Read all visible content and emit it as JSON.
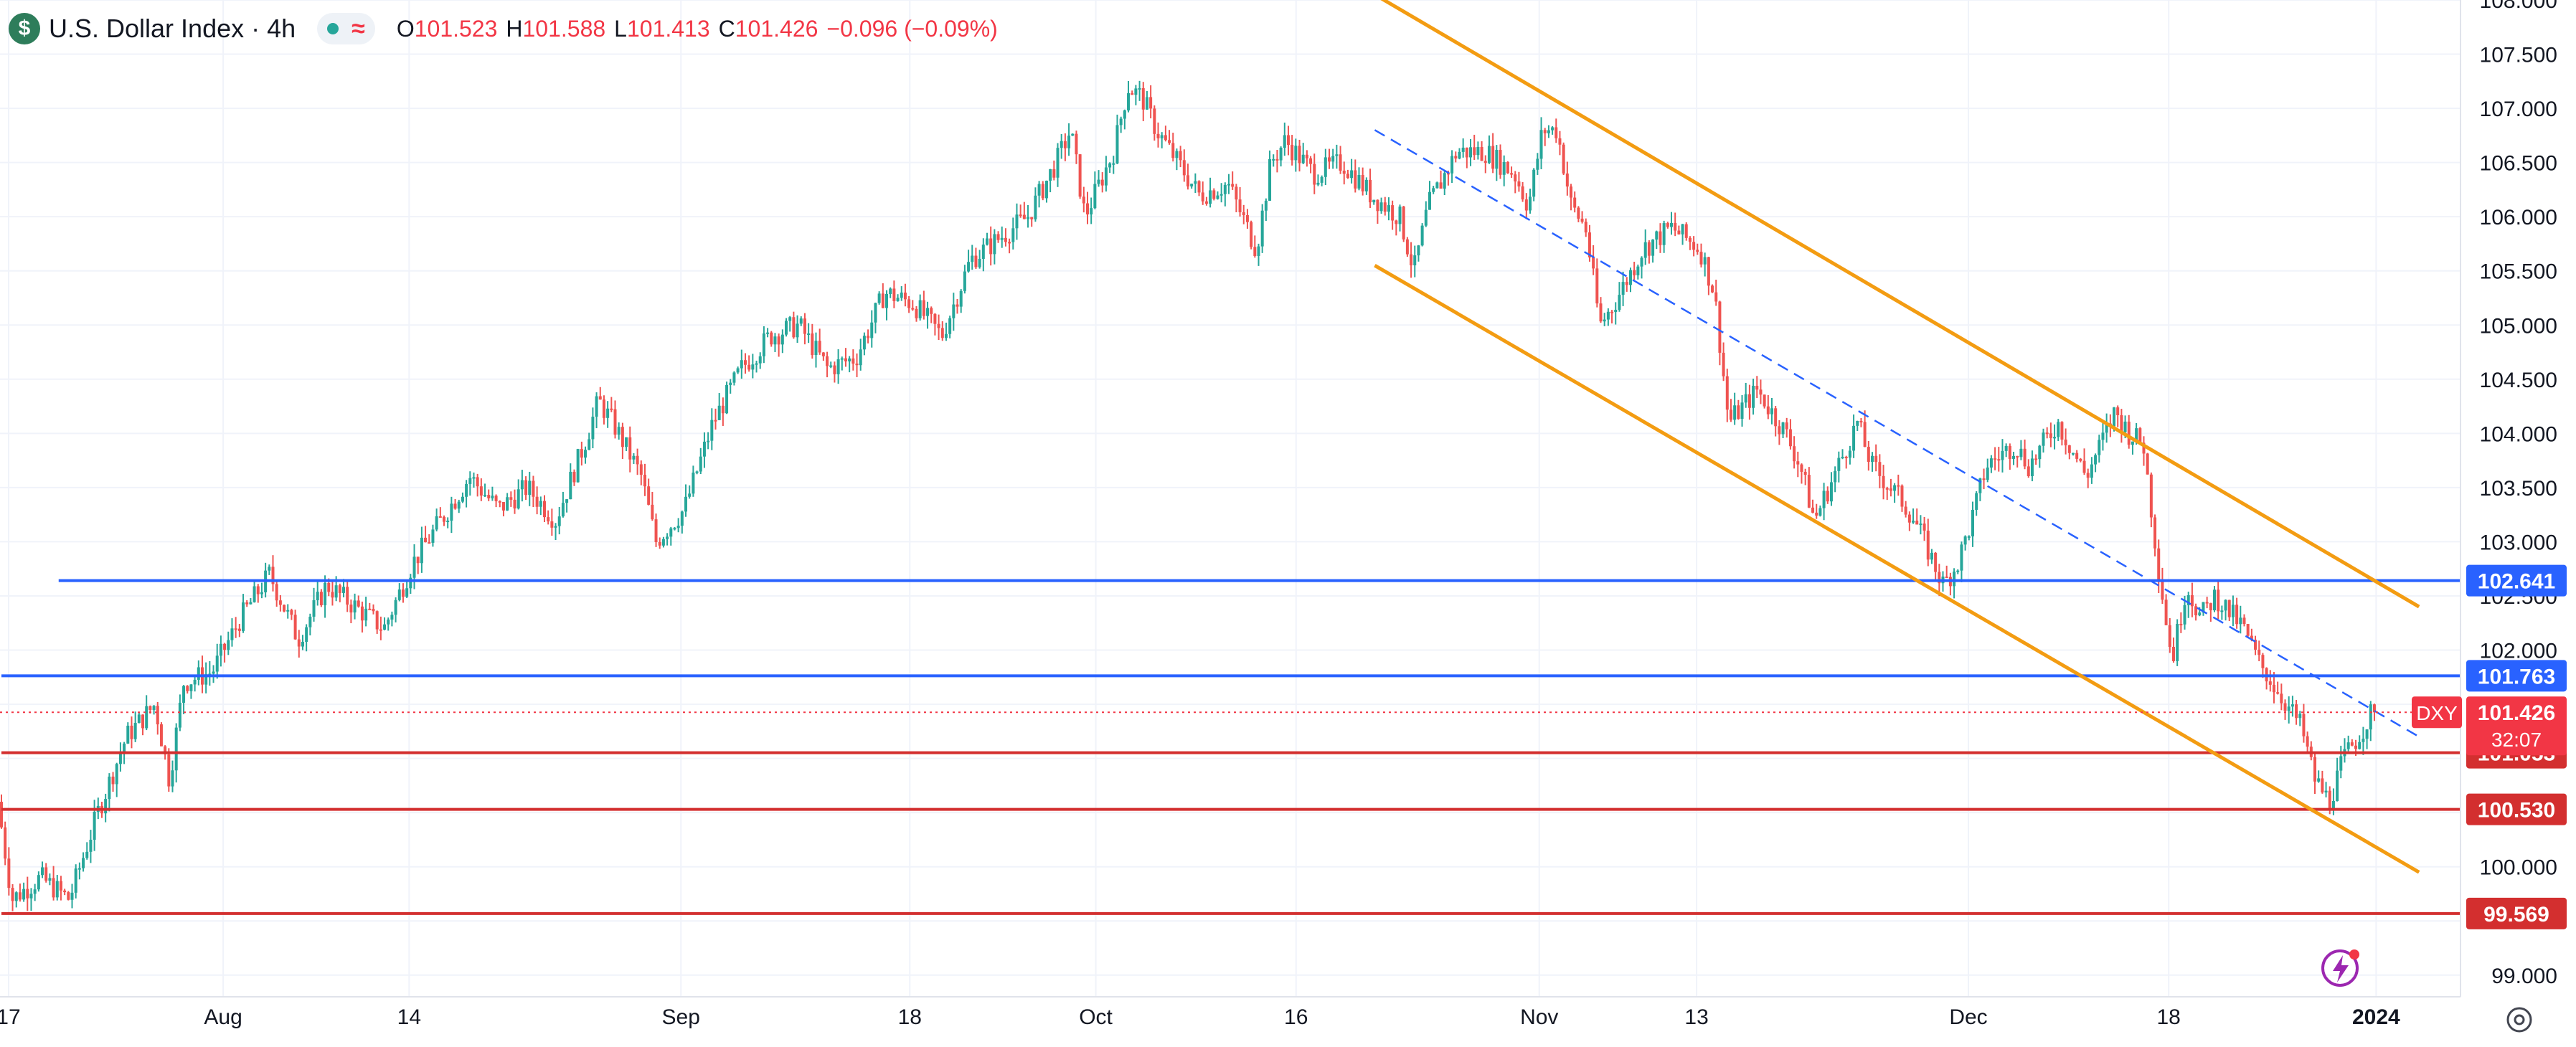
{
  "header": {
    "symbol_icon": "dollar-sign-icon",
    "symbol_glyph": "$",
    "title": "U.S. Dollar Index · 4h",
    "status_icon": "market-status-dot",
    "approx_glyph": "≈",
    "ohlc": {
      "o_label": "O",
      "o_value": "101.523",
      "h_label": "H",
      "h_value": "101.588",
      "l_label": "L",
      "l_value": "101.413",
      "c_label": "C",
      "c_value": "101.426",
      "change": "−0.096 (−0.09%)"
    }
  },
  "chart_data": {
    "type": "candlestick",
    "timeframe": "4h",
    "instrument": "DXY",
    "y_range": [
      98.8,
      108.0
    ],
    "y_ticks": [
      "108.000",
      "107.500",
      "107.000",
      "106.500",
      "106.000",
      "105.500",
      "105.000",
      "104.500",
      "104.000",
      "103.500",
      "103.000",
      "102.500",
      "102.000",
      "100.000",
      "99.000"
    ],
    "x_ticks": [
      {
        "label": "17",
        "t": 0.5
      },
      {
        "label": "Aug",
        "t": 15.5
      },
      {
        "label": "14",
        "t": 28.5
      },
      {
        "label": "Sep",
        "t": 47.5
      },
      {
        "label": "18",
        "t": 63.5
      },
      {
        "label": "Oct",
        "t": 76.5
      },
      {
        "label": "16",
        "t": 90.5
      },
      {
        "label": "Nov",
        "t": 107.5
      },
      {
        "label": "13",
        "t": 118.5
      },
      {
        "label": "Dec",
        "t": 137.5
      },
      {
        "label": "18",
        "t": 151.5
      },
      {
        "label": "2024",
        "t": 166
      }
    ],
    "t_max": 172,
    "price_path": [
      [
        0,
        100.6
      ],
      [
        1,
        99.7
      ],
      [
        3,
        99.9
      ],
      [
        5,
        99.7
      ],
      [
        7,
        100.5
      ],
      [
        9,
        101.2
      ],
      [
        11,
        101.5
      ],
      [
        12,
        100.8
      ],
      [
        13,
        101.7
      ],
      [
        15,
        101.8
      ],
      [
        17,
        102.3
      ],
      [
        19,
        102.7
      ],
      [
        21,
        102.1
      ],
      [
        23,
        102.6
      ],
      [
        25,
        102.4
      ],
      [
        27,
        102.2
      ],
      [
        29,
        102.8
      ],
      [
        31,
        103.2
      ],
      [
        33,
        103.6
      ],
      [
        35,
        103.3
      ],
      [
        37,
        103.5
      ],
      [
        39,
        103.2
      ],
      [
        41,
        103.9
      ],
      [
        42,
        104.3
      ],
      [
        43,
        104.1
      ],
      [
        45,
        103.6
      ],
      [
        46,
        103.0
      ],
      [
        48,
        103.3
      ],
      [
        49,
        103.7
      ],
      [
        50,
        104.1
      ],
      [
        52,
        104.6
      ],
      [
        54,
        104.9
      ],
      [
        56,
        105.0
      ],
      [
        58,
        104.6
      ],
      [
        60,
        104.7
      ],
      [
        62,
        105.3
      ],
      [
        64,
        105.2
      ],
      [
        66,
        104.9
      ],
      [
        68,
        105.6
      ],
      [
        70,
        105.8
      ],
      [
        72,
        106.0
      ],
      [
        74,
        106.5
      ],
      [
        75,
        106.8
      ],
      [
        76,
        106.0
      ],
      [
        78,
        106.6
      ],
      [
        79,
        107.2
      ],
      [
        80,
        107.1
      ],
      [
        81,
        106.8
      ],
      [
        82,
        106.6
      ],
      [
        84,
        106.2
      ],
      [
        86,
        106.3
      ],
      [
        88,
        105.7
      ],
      [
        89,
        106.5
      ],
      [
        90,
        106.7
      ],
      [
        92,
        106.4
      ],
      [
        94,
        106.5
      ],
      [
        96,
        106.2
      ],
      [
        98,
        106.0
      ],
      [
        99,
        105.5
      ],
      [
        100,
        106.1
      ],
      [
        102,
        106.6
      ],
      [
        104,
        106.6
      ],
      [
        106,
        106.4
      ],
      [
        107,
        106.1
      ],
      [
        108,
        106.8
      ],
      [
        109,
        106.8
      ],
      [
        110,
        106.1
      ],
      [
        111,
        105.9
      ],
      [
        112,
        105.0
      ],
      [
        113,
        105.2
      ],
      [
        115,
        105.7
      ],
      [
        117,
        105.9
      ],
      [
        118,
        105.8
      ],
      [
        119,
        105.7
      ],
      [
        120,
        105.3
      ],
      [
        121,
        104.1
      ],
      [
        123,
        104.4
      ],
      [
        125,
        104.0
      ],
      [
        126,
        103.7
      ],
      [
        127,
        103.2
      ],
      [
        129,
        103.8
      ],
      [
        130,
        104.1
      ],
      [
        131,
        103.7
      ],
      [
        133,
        103.4
      ],
      [
        134,
        103.2
      ],
      [
        136,
        102.6
      ],
      [
        137,
        102.8
      ],
      [
        138,
        103.2
      ],
      [
        139,
        103.7
      ],
      [
        141,
        103.9
      ],
      [
        142,
        103.7
      ],
      [
        144,
        104.1
      ],
      [
        146,
        103.6
      ],
      [
        147,
        103.9
      ],
      [
        148,
        104.2
      ],
      [
        149,
        104.0
      ],
      [
        150,
        103.9
      ],
      [
        151,
        102.8
      ],
      [
        152,
        101.9
      ],
      [
        153,
        102.6
      ],
      [
        154,
        102.3
      ],
      [
        155,
        102.5
      ],
      [
        157,
        102.2
      ],
      [
        158,
        101.9
      ],
      [
        159,
        101.7
      ],
      [
        161,
        101.3
      ],
      [
        162,
        100.8
      ],
      [
        163,
        100.6
      ],
      [
        164,
        101.0
      ],
      [
        165,
        101.2
      ],
      [
        166,
        101.43
      ]
    ],
    "horizontal_levels": [
      {
        "value": 102.641,
        "label": "102.641",
        "color": "#2962ff",
        "t_start": 4
      },
      {
        "value": 101.763,
        "label": "101.763",
        "color": "#2962ff",
        "t_start": 0
      },
      {
        "value": 101.053,
        "label": "101.053",
        "color": "#d32f2f",
        "t_start": 0
      },
      {
        "value": 100.53,
        "label": "100.530",
        "color": "#d32f2f",
        "t_start": 0
      },
      {
        "value": 99.569,
        "label": "99.569",
        "color": "#d32f2f",
        "t_start": 0
      }
    ],
    "channel": {
      "color": "#f39c12",
      "upper": [
        [
          96,
          108.05
        ],
        [
          169,
          102.4
        ]
      ],
      "lower": [
        [
          96,
          105.55
        ],
        [
          169,
          99.95
        ]
      ],
      "mid": {
        "color": "#2962ff",
        "dashed": true,
        "points": [
          [
            96,
            106.8
          ],
          [
            169,
            101.2
          ]
        ]
      }
    },
    "last_price": {
      "symbol": "DXY",
      "value": 101.426,
      "label": "101.426",
      "countdown": "32:07",
      "color": "#f23645"
    },
    "colors": {
      "up": "#26a69a",
      "down": "#ef5350",
      "grid": "#f0f3fa",
      "text": "#131722"
    },
    "settings_icon": "gear-icon",
    "lightning_icon": "lightning-icon"
  }
}
